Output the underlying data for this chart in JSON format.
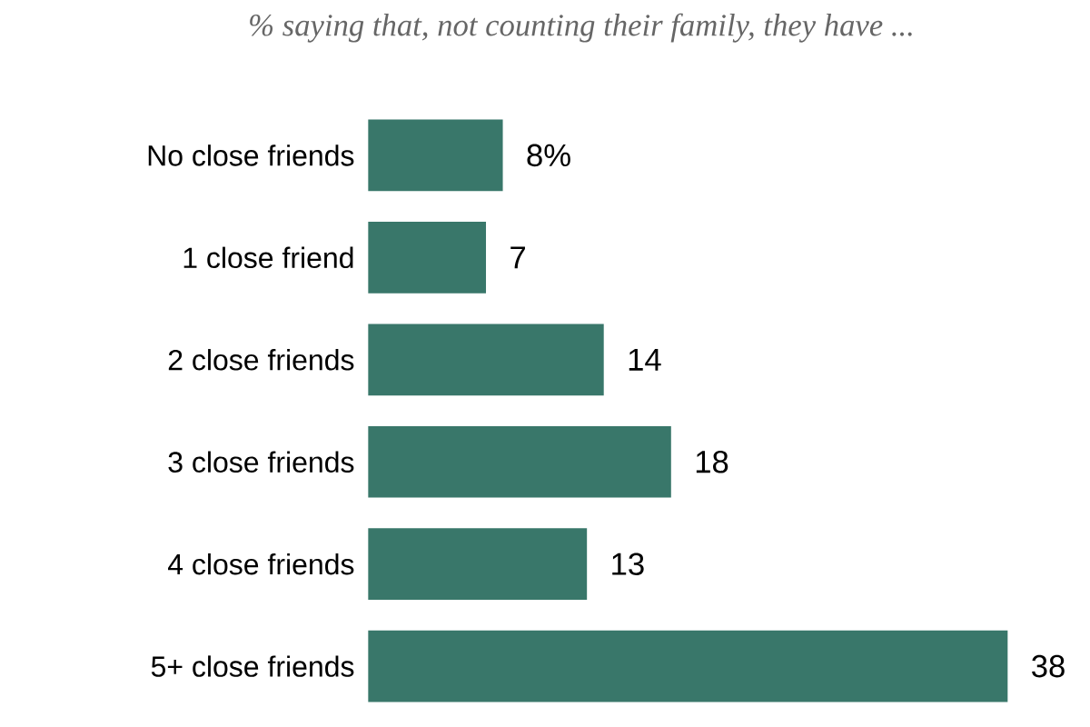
{
  "chart_data": {
    "type": "bar",
    "orientation": "horizontal",
    "subtitle": "% saying that, not counting their family, they have ...",
    "categories": [
      "No close friends",
      "1 close friend",
      "2 close friends",
      "3 close friends",
      "4 close friends",
      "5+ close friends"
    ],
    "values": [
      8,
      7,
      14,
      18,
      13,
      38
    ],
    "value_labels": [
      "8%",
      "7",
      "14",
      "18",
      "13",
      "38"
    ],
    "color": "#39776a"
  }
}
